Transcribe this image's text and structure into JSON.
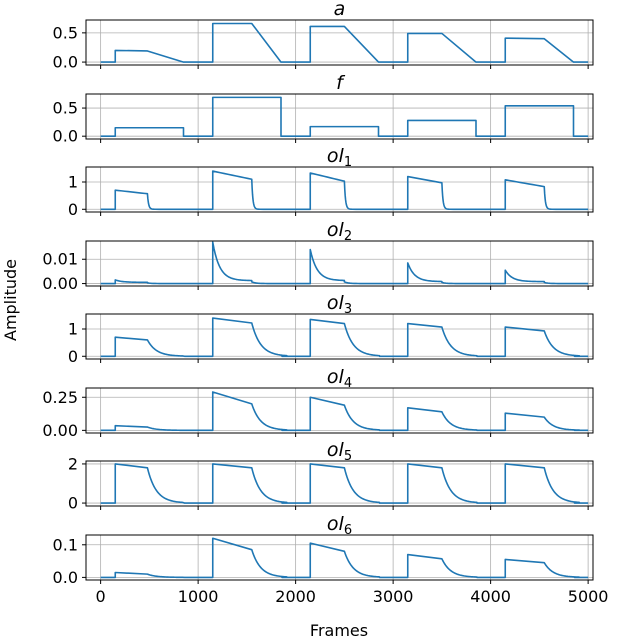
{
  "chart_data": {
    "type": "line",
    "xlabel": "Frames",
    "ylabel": "Amplitude",
    "xlim": [
      -150,
      5050
    ],
    "xticks": [
      0,
      1000,
      2000,
      3000,
      4000,
      5000
    ],
    "grid": true,
    "line_color": "#1f77b4",
    "segments": [
      {
        "start": 150,
        "hold_end": 480,
        "release_end": 850
      },
      {
        "start": 1150,
        "hold_end": 1550,
        "release_end": 1850
      },
      {
        "start": 2150,
        "hold_end": 2500,
        "release_end": 2850
      },
      {
        "start": 3150,
        "hold_end": 3500,
        "release_end": 3850
      },
      {
        "start": 4150,
        "hold_end": 4550,
        "release_end": 4850
      }
    ],
    "panels": [
      {
        "title": "a",
        "subscript": "",
        "ylim": [
          -0.05,
          0.72
        ],
        "yticks": [
          0.0,
          0.5
        ],
        "ytick_labels": [
          "0.0",
          "0.5"
        ],
        "kind": "ramp",
        "peaks": [
          0.2,
          0.66,
          0.61,
          0.49,
          0.41
        ],
        "sustain": [
          0.19,
          0.66,
          0.61,
          0.49,
          0.4
        ]
      },
      {
        "title": "f",
        "subscript": "",
        "ylim": [
          -0.05,
          0.75
        ],
        "yticks": [
          0.0,
          0.5
        ],
        "ytick_labels": [
          "0.0",
          "0.5"
        ],
        "kind": "step",
        "peaks": [
          0.15,
          0.69,
          0.17,
          0.28,
          0.54
        ],
        "sustain": [
          0.15,
          0.69,
          0.17,
          0.28,
          0.54
        ]
      },
      {
        "title": "ol",
        "subscript": "1",
        "ylim": [
          -0.1,
          1.55
        ],
        "yticks": [
          0,
          1
        ],
        "ytick_labels": [
          "0",
          "1"
        ],
        "kind": "sharp",
        "peaks": [
          0.7,
          1.4,
          1.33,
          1.2,
          1.08
        ],
        "sustain": [
          0.57,
          1.1,
          1.03,
          0.97,
          0.83
        ]
      },
      {
        "title": "ol",
        "subscript": "2",
        "ylim": [
          -0.001,
          0.0175
        ],
        "yticks": [
          0.0,
          0.01
        ],
        "ytick_labels": [
          "0.00",
          "0.01"
        ],
        "kind": "spike",
        "peaks": [
          0.0015,
          0.017,
          0.014,
          0.0085,
          0.0055
        ],
        "sustain": [
          0.0005,
          0.0012,
          0.0012,
          0.0008,
          0.0008
        ]
      },
      {
        "title": "ol",
        "subscript": "3",
        "ylim": [
          -0.1,
          1.55
        ],
        "yticks": [
          0,
          1
        ],
        "ytick_labels": [
          "0",
          "1"
        ],
        "kind": "smooth",
        "peaks": [
          0.7,
          1.4,
          1.35,
          1.2,
          1.07
        ],
        "sustain": [
          0.6,
          1.22,
          1.2,
          1.07,
          0.93
        ]
      },
      {
        "title": "ol",
        "subscript": "4",
        "ylim": [
          -0.02,
          0.32
        ],
        "yticks": [
          0.0,
          0.25
        ],
        "ytick_labels": [
          "0.00",
          "0.25"
        ],
        "kind": "smooth",
        "peaks": [
          0.035,
          0.29,
          0.25,
          0.17,
          0.13
        ],
        "sustain": [
          0.025,
          0.2,
          0.19,
          0.14,
          0.1
        ]
      },
      {
        "title": "ol",
        "subscript": "5",
        "ylim": [
          -0.15,
          2.15
        ],
        "yticks": [
          0,
          2
        ],
        "ytick_labels": [
          "0",
          "2"
        ],
        "kind": "smooth",
        "peaks": [
          2.0,
          2.0,
          2.0,
          2.0,
          2.0
        ],
        "sustain": [
          1.8,
          1.8,
          1.8,
          1.8,
          1.8
        ]
      },
      {
        "title": "ol",
        "subscript": "6",
        "ylim": [
          -0.008,
          0.13
        ],
        "yticks": [
          0.0,
          0.1
        ],
        "ytick_labels": [
          "0.0",
          "0.1"
        ],
        "kind": "smooth",
        "peaks": [
          0.015,
          0.12,
          0.105,
          0.07,
          0.055
        ],
        "sustain": [
          0.01,
          0.085,
          0.08,
          0.057,
          0.045
        ]
      }
    ]
  }
}
